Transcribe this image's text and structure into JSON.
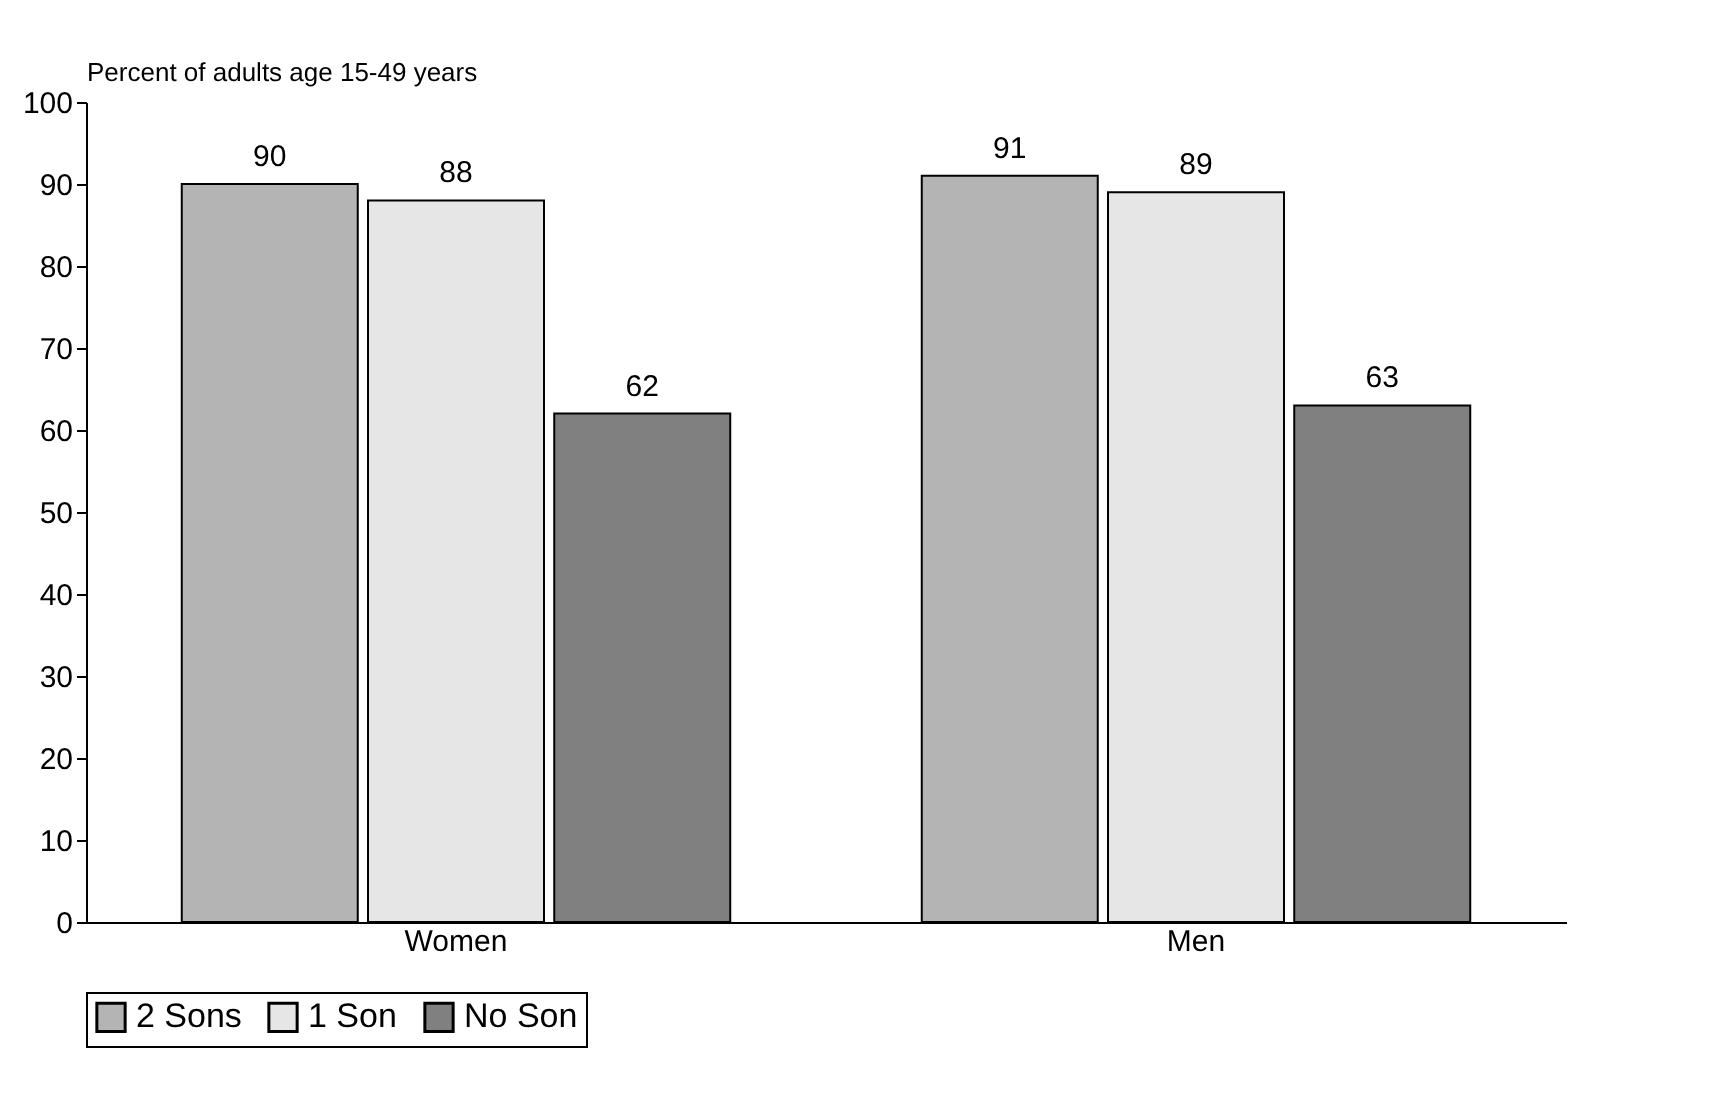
{
  "chart_data": {
    "type": "bar",
    "ylabel": "Percent of adults age 15-49 years",
    "categories": [
      "Women",
      "Men"
    ],
    "series": [
      {
        "name": "2 Sons",
        "color": "#b4b4b4",
        "values": [
          90,
          91
        ]
      },
      {
        "name": "1 Son",
        "color": "#e6e6e6",
        "values": [
          88,
          89
        ]
      },
      {
        "name": "No Son",
        "color": "#808080",
        "values": [
          62,
          63
        ]
      }
    ],
    "ylim": [
      0,
      100
    ],
    "yticks": [
      0,
      10,
      20,
      30,
      40,
      50,
      60,
      70,
      80,
      90,
      100
    ],
    "data_labels": true,
    "grid": false,
    "legend": "bottom"
  }
}
